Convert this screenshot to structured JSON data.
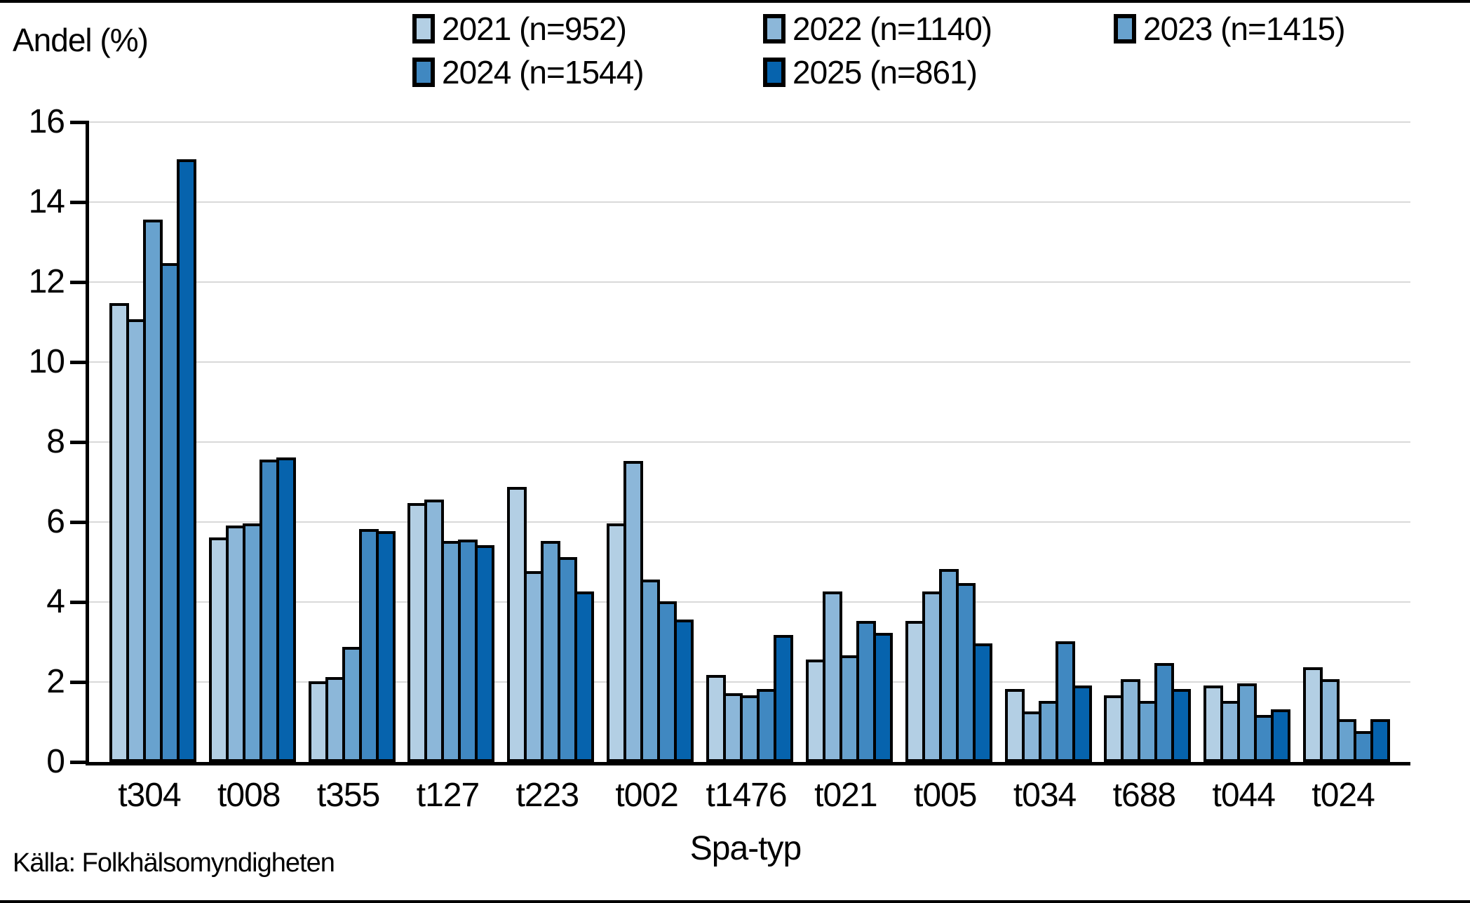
{
  "source_note": "Källa: Folkhälsomyndigheten",
  "chart_data": {
    "type": "bar",
    "title": "",
    "ylabel": "Andel (%)",
    "xlabel": "Spa-typ",
    "ylim": [
      0,
      16
    ],
    "ytick_interval": 2,
    "yticks": [
      0,
      2,
      4,
      6,
      8,
      10,
      12,
      14,
      16
    ],
    "grid": true,
    "legend_position": "top",
    "grid_color": "#d9d9d9",
    "bar_outline_color": "#000000",
    "categories": [
      "t304",
      "t008",
      "t355",
      "t127",
      "t223",
      "t002",
      "t1476",
      "t021",
      "t005",
      "t034",
      "t688",
      "t044",
      "t024"
    ],
    "series": [
      {
        "name": "2021 (n=952)",
        "color": "#b3cfe4",
        "values": [
          11.4,
          5.55,
          1.95,
          6.4,
          6.8,
          5.9,
          2.1,
          2.5,
          3.45,
          1.75,
          1.6,
          1.85,
          2.3
        ]
      },
      {
        "name": "2022 (n=1140)",
        "color": "#8cb7d9",
        "values": [
          11.0,
          5.85,
          2.05,
          6.5,
          4.7,
          7.45,
          1.65,
          4.2,
          4.2,
          1.2,
          2.0,
          1.45,
          2.0
        ]
      },
      {
        "name": "2023 (n=1415)",
        "color": "#68a2ce",
        "values": [
          13.5,
          5.9,
          2.8,
          5.45,
          5.45,
          4.5,
          1.6,
          2.6,
          4.75,
          1.45,
          1.45,
          1.9,
          1.0
        ]
      },
      {
        "name": "2024 (n=1544)",
        "color": "#4088c1",
        "values": [
          12.4,
          7.5,
          5.75,
          5.5,
          5.05,
          3.95,
          1.75,
          3.45,
          4.4,
          2.95,
          2.4,
          1.1,
          0.7
        ]
      },
      {
        "name": "2025 (n=861)",
        "color": "#0663ad",
        "values": [
          15.0,
          7.55,
          5.7,
          5.35,
          4.2,
          3.5,
          3.1,
          3.15,
          2.9,
          1.85,
          1.75,
          1.25,
          1.0
        ]
      }
    ]
  }
}
